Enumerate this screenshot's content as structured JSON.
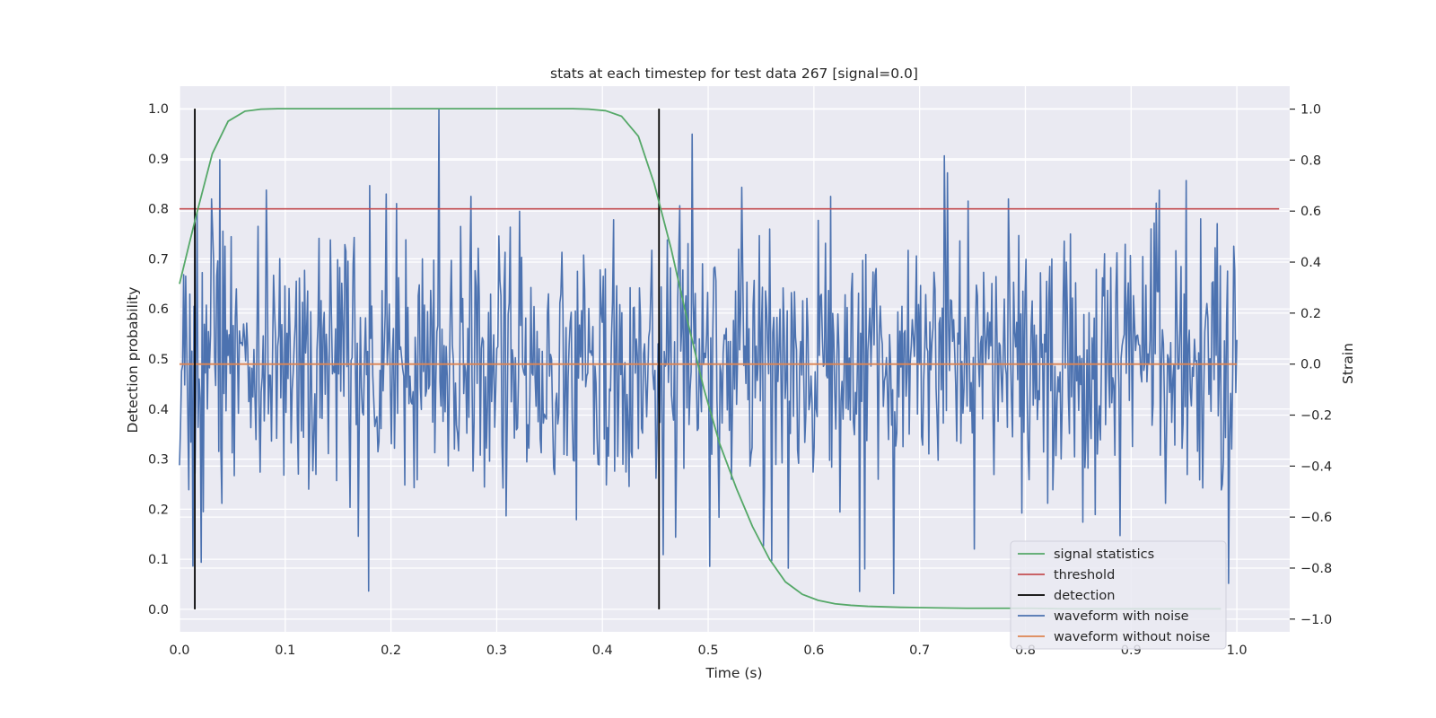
{
  "chart_data": {
    "type": "line",
    "title": "stats at each timestep for test data 267 [signal=0.0]",
    "xlabel": "Time (s)",
    "ylabel_left": "Detection probability",
    "ylabel_right": "Strain",
    "xlim": [
      0.0,
      1.05
    ],
    "ylim_left": [
      -0.045,
      1.045
    ],
    "ylim_right": [
      -1.05,
      1.09
    ],
    "x_ticks": [
      "0.0",
      "0.1",
      "0.2",
      "0.3",
      "0.4",
      "0.5",
      "0.6",
      "0.7",
      "0.8",
      "0.9",
      "1.0"
    ],
    "y_ticks_left": [
      "0.0",
      "0.1",
      "0.2",
      "0.3",
      "0.4",
      "0.5",
      "0.6",
      "0.7",
      "0.8",
      "0.9",
      "1.0"
    ],
    "y_ticks_right": [
      "−1.0",
      "−0.8",
      "−0.6",
      "−0.4",
      "−0.2",
      "0.0",
      "0.2",
      "0.4",
      "0.6",
      "0.8",
      "1.0"
    ],
    "grid": true,
    "legend_position": "lower-right",
    "colors": {
      "background": "#eaeaf2",
      "signal": "#55a868",
      "threshold": "#c44e52",
      "detection": "#000000",
      "noisy": "#4c72b0",
      "clean": "#dd8452"
    },
    "series": [
      {
        "name": "signal statistics",
        "axis": "left",
        "x": [
          0.0,
          0.015,
          0.031,
          0.046,
          0.062,
          0.077,
          0.093,
          0.108,
          0.124,
          0.139,
          0.155,
          0.17,
          0.186,
          0.201,
          0.217,
          0.232,
          0.248,
          0.263,
          0.279,
          0.294,
          0.31,
          0.325,
          0.341,
          0.356,
          0.372,
          0.387,
          0.403,
          0.418,
          0.434,
          0.449,
          0.465,
          0.48,
          0.496,
          0.511,
          0.527,
          0.542,
          0.558,
          0.573,
          0.589,
          0.604,
          0.62,
          0.635,
          0.651,
          0.682,
          0.713,
          0.744,
          0.775,
          0.806,
          0.837,
          0.868,
          0.899,
          0.93,
          0.961,
          0.985
        ],
        "y": [
          0.65,
          0.78,
          0.91,
          0.975,
          0.995,
          0.999,
          1.0,
          1.0,
          1.0,
          1.0,
          1.0,
          1.0,
          1.0,
          1.0,
          1.0,
          1.0,
          1.0,
          1.0,
          1.0,
          1.0,
          1.0,
          1.0,
          1.0,
          1.0,
          1.0,
          0.999,
          0.996,
          0.985,
          0.945,
          0.85,
          0.72,
          0.58,
          0.44,
          0.33,
          0.24,
          0.165,
          0.1,
          0.055,
          0.03,
          0.018,
          0.011,
          0.008,
          0.006,
          0.004,
          0.003,
          0.002,
          0.002,
          0.002,
          0.001,
          0.001,
          0.001,
          0.001,
          0.001,
          0.001
        ]
      },
      {
        "name": "threshold",
        "axis": "left",
        "x": [
          0.0,
          1.04
        ],
        "y": [
          0.8,
          0.8
        ]
      },
      {
        "name": "detection",
        "axis": "left",
        "x": [
          0.0145,
          0.4535
        ],
        "y": [
          0.0,
          1.0
        ]
      },
      {
        "name": "waveform with noise",
        "axis": "right",
        "x_range": [
          0.0,
          1.0
        ],
        "n_points": 1024,
        "y_range_visible": [
          -0.9,
          1.0
        ],
        "peaks": [
          {
            "x": 0.18,
            "y": 0.7
          },
          {
            "x": 0.245,
            "y": 1.0
          },
          {
            "x": 0.726,
            "y": 0.75
          },
          {
            "x": 0.952,
            "y": 0.72
          },
          {
            "x": 0.179,
            "y": -0.89
          },
          {
            "x": 0.576,
            "y": -0.8
          }
        ]
      },
      {
        "name": "waveform without noise",
        "axis": "right",
        "x": [
          0.0,
          1.0
        ],
        "y": [
          0.0,
          0.0
        ]
      }
    ]
  }
}
